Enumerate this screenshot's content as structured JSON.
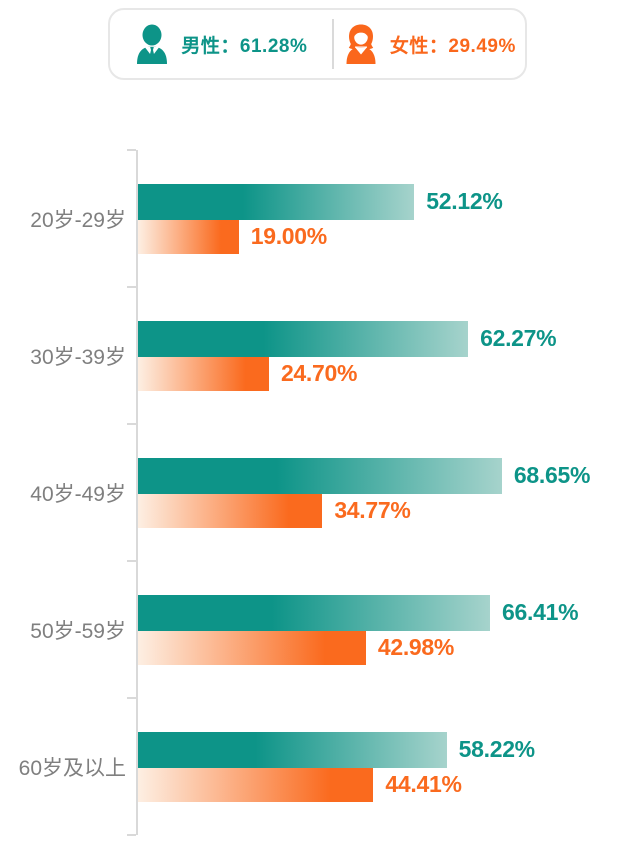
{
  "legend": {
    "male": {
      "label": "男性：",
      "value": "61.28%",
      "color": "#0d9488",
      "icon": "male-person-icon"
    },
    "female": {
      "label": "女性：",
      "value": "29.49%",
      "color": "#fa671c",
      "icon": "female-person-icon"
    }
  },
  "chart_data": {
    "type": "bar",
    "orientation": "horizontal",
    "title": "",
    "categories": [
      "20岁-29岁",
      "30岁-39岁",
      "40岁-49岁",
      "50岁-59岁",
      "60岁及以上"
    ],
    "series": [
      {
        "name": "男性",
        "color": "#0d9488",
        "color_light": "#a6d3cc",
        "values": [
          52.12,
          62.27,
          68.65,
          66.41,
          58.22
        ],
        "labels": [
          "52.12%",
          "62.27%",
          "68.65%",
          "66.41%",
          "58.22%"
        ]
      },
      {
        "name": "女性",
        "color": "#fa6a1e",
        "color_light": "#fdefe3",
        "values": [
          19.0,
          24.7,
          34.77,
          42.98,
          44.41
        ],
        "labels": [
          "19.00%",
          "24.70%",
          "34.77%",
          "42.98%",
          "44.41%"
        ]
      }
    ],
    "value_suffix": "%",
    "axis_max": 91.3,
    "grid": false,
    "legend_position": "top",
    "axis_color": "#d9d9d9",
    "category_label_color": "#7f7f7f"
  }
}
